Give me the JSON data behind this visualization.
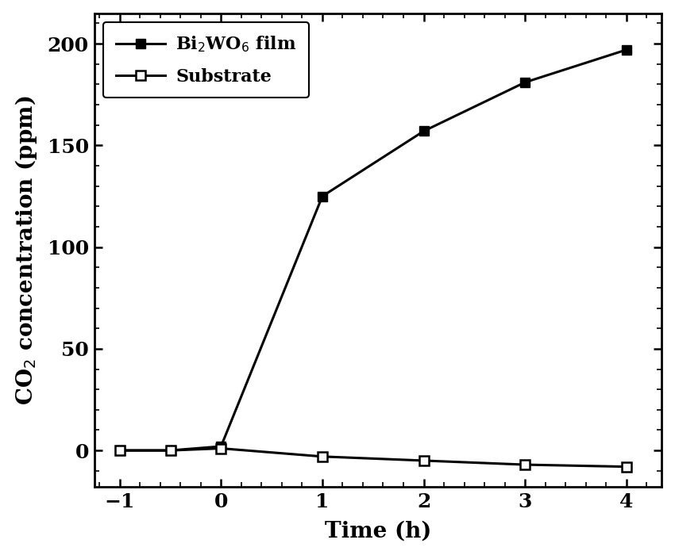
{
  "bi2wo6_x": [
    -1,
    -0.5,
    0,
    1,
    2,
    3,
    4
  ],
  "bi2wo6_y": [
    0,
    0,
    2,
    125,
    157,
    181,
    197
  ],
  "substrate_x": [
    -1,
    -0.5,
    0,
    1,
    2,
    3,
    4
  ],
  "substrate_y": [
    0,
    0,
    1,
    -3,
    -5,
    -7,
    -8
  ],
  "xlabel": "Time (h)",
  "ylabel": "CO$_2$ concentration (ppm)",
  "legend_bi2wo6": "Bi$_2$WO$_6$ film",
  "legend_substrate": "Substrate",
  "xlim": [
    -1.25,
    4.35
  ],
  "ylim": [
    -18,
    215
  ],
  "xticks": [
    -1,
    0,
    1,
    2,
    3,
    4
  ],
  "yticks": [
    0,
    50,
    100,
    150,
    200
  ],
  "line_color": "#000000",
  "bg_color": "#ffffff",
  "linewidth": 2.2,
  "markersize": 8
}
